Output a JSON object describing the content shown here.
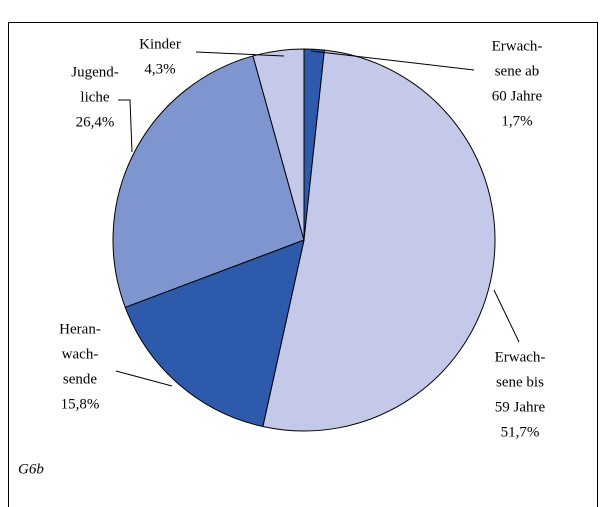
{
  "chart_data": {
    "type": "pie",
    "categories": [
      "Erwachsene ab 60 Jahre",
      "Erwachsene bis 59 Jahre",
      "Heranwachsende",
      "Jugendliche",
      "Kinder"
    ],
    "label_lines": [
      [
        "Erwach-",
        "sene ab",
        "60 Jahre"
      ],
      [
        "Erwach-",
        "sene bis",
        "59 Jahre"
      ],
      [
        "Heran-",
        "wach-",
        "sende"
      ],
      [
        "Jugend-",
        "liche"
      ],
      [
        "Kinder"
      ]
    ],
    "values": [
      1.7,
      51.7,
      15.8,
      26.4,
      4.3
    ],
    "value_labels": [
      "1,7%",
      "51,7%",
      "15,8%",
      "26,4%",
      "4,3%"
    ],
    "colors": [
      "#2e5aac",
      "#c5c9e9",
      "#2e5aac",
      "#7f95cf",
      "#c5c9e9"
    ],
    "footnote": "G6b"
  }
}
